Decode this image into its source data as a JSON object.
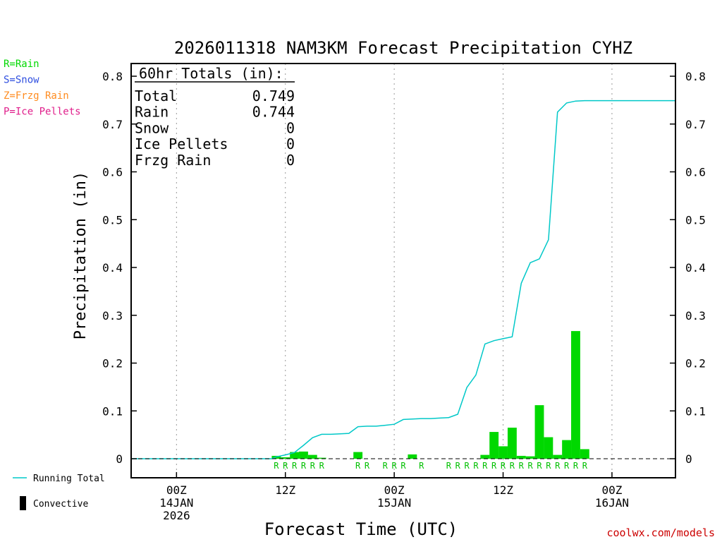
{
  "chart_data": {
    "type": "bar",
    "title": "2026011318 NAM3KM Forecast Precipitation CYHZ",
    "ylabel": "Precipitation (in)",
    "xlabel": "Forecast Time (UTC)",
    "ylim": [
      0,
      0.82
    ],
    "xlim_hours": [
      -5,
      55
    ],
    "y_ticks": [
      "0",
      "0.1",
      "0.2",
      "0.3",
      "0.4",
      "0.5",
      "0.6",
      "0.7",
      "0.8"
    ],
    "x_ticks": [
      {
        "hour": 0,
        "lines": [
          "00Z",
          "14JAN",
          "2026"
        ]
      },
      {
        "hour": 12,
        "lines": [
          "12Z"
        ]
      },
      {
        "hour": 24,
        "lines": [
          "00Z",
          "15JAN"
        ]
      },
      {
        "hour": 36,
        "lines": [
          "12Z"
        ]
      },
      {
        "hour": 48,
        "lines": [
          "00Z",
          "16JAN"
        ]
      }
    ],
    "grid": "vertical dotted at 6-hourly ticks",
    "totals": {
      "header": "60hr Totals (in):",
      "rows": [
        {
          "label": "Total",
          "value": "0.749"
        },
        {
          "label": "Rain",
          "value": "0.744"
        },
        {
          "label": "Snow",
          "value": "0"
        },
        {
          "label": "Ice Pellets",
          "value": "0"
        },
        {
          "label": "Frzg Rain",
          "value": "0"
        }
      ]
    },
    "series": [
      {
        "name": "Running Total",
        "color": "#00c8c8",
        "x": [
          -5,
          10.5,
          11,
          12,
          13,
          14,
          15,
          16,
          17,
          18,
          19,
          20,
          21,
          22,
          23,
          24,
          25,
          26,
          27,
          28,
          29,
          30,
          31,
          32,
          33,
          34,
          35,
          36,
          37,
          38,
          39,
          40,
          41,
          42,
          43,
          44,
          45,
          46,
          47,
          48,
          55
        ],
        "values": [
          0,
          0,
          0.004,
          0.008,
          0.013,
          0.028,
          0.044,
          0.051,
          0.051,
          0.052,
          0.053,
          0.067,
          0.068,
          0.068,
          0.07,
          0.072,
          0.082,
          0.083,
          0.084,
          0.084,
          0.085,
          0.086,
          0.093,
          0.149,
          0.175,
          0.24,
          0.247,
          0.251,
          0.255,
          0.367,
          0.41,
          0.418,
          0.458,
          0.725,
          0.744,
          0.748,
          0.749,
          0.749,
          0.749,
          0.749,
          0.749
        ]
      },
      {
        "name": "Rain",
        "color": "#00d800",
        "bar_start_hours": [
          10.5,
          11.5,
          12.5,
          13.5,
          14.5,
          15.5,
          19.5,
          25.5,
          33.5,
          34.5,
          35.5,
          36.5,
          37.5,
          38.5,
          39.5,
          40.5,
          41.5,
          42.5,
          43.5,
          44.5
        ],
        "values": [
          0.006,
          0.003,
          0.014,
          0.015,
          0.008,
          0.002,
          0.014,
          0.009,
          0.008,
          0.056,
          0.026,
          0.065,
          0.006,
          0.005,
          0.112,
          0.045,
          0.008,
          0.039,
          0.267,
          0.02
        ]
      }
    ],
    "precip_type_marks": [
      {
        "hour": 11,
        "text": "R"
      },
      {
        "hour": 12,
        "text": "R"
      },
      {
        "hour": 13,
        "text": "R"
      },
      {
        "hour": 14,
        "text": "R"
      },
      {
        "hour": 15,
        "text": "R"
      },
      {
        "hour": 16,
        "text": "R"
      },
      {
        "hour": 20,
        "text": "R"
      },
      {
        "hour": 21,
        "text": "R"
      },
      {
        "hour": 23,
        "text": "R"
      },
      {
        "hour": 24,
        "text": "R"
      },
      {
        "hour": 25,
        "text": "R"
      },
      {
        "hour": 27,
        "text": "R"
      },
      {
        "hour": 30,
        "text": "R"
      },
      {
        "hour": 31,
        "text": "R"
      },
      {
        "hour": 32,
        "text": "R"
      },
      {
        "hour": 33,
        "text": "R"
      },
      {
        "hour": 34,
        "text": "R"
      },
      {
        "hour": 35,
        "text": "R"
      },
      {
        "hour": 36,
        "text": "R"
      },
      {
        "hour": 37,
        "text": "R"
      },
      {
        "hour": 38,
        "text": "R"
      },
      {
        "hour": 39,
        "text": "R"
      },
      {
        "hour": 40,
        "text": "R"
      },
      {
        "hour": 41,
        "text": "R"
      },
      {
        "hour": 42,
        "text": "R"
      },
      {
        "hour": 43,
        "text": "R"
      },
      {
        "hour": 44,
        "text": "R"
      },
      {
        "hour": 45,
        "text": "R"
      }
    ],
    "type_legend": [
      {
        "text": "R=Rain",
        "color": "#00d800"
      },
      {
        "text": "S=Snow",
        "color": "#3050e0"
      },
      {
        "text": "Z=Frzg Rain",
        "color": "#ff8c20"
      },
      {
        "text": "P=Ice Pellets",
        "color": "#e0208c"
      }
    ],
    "line_legend": "Running Total",
    "convective_legend": "Convective",
    "credit": "coolwx.com/models"
  }
}
